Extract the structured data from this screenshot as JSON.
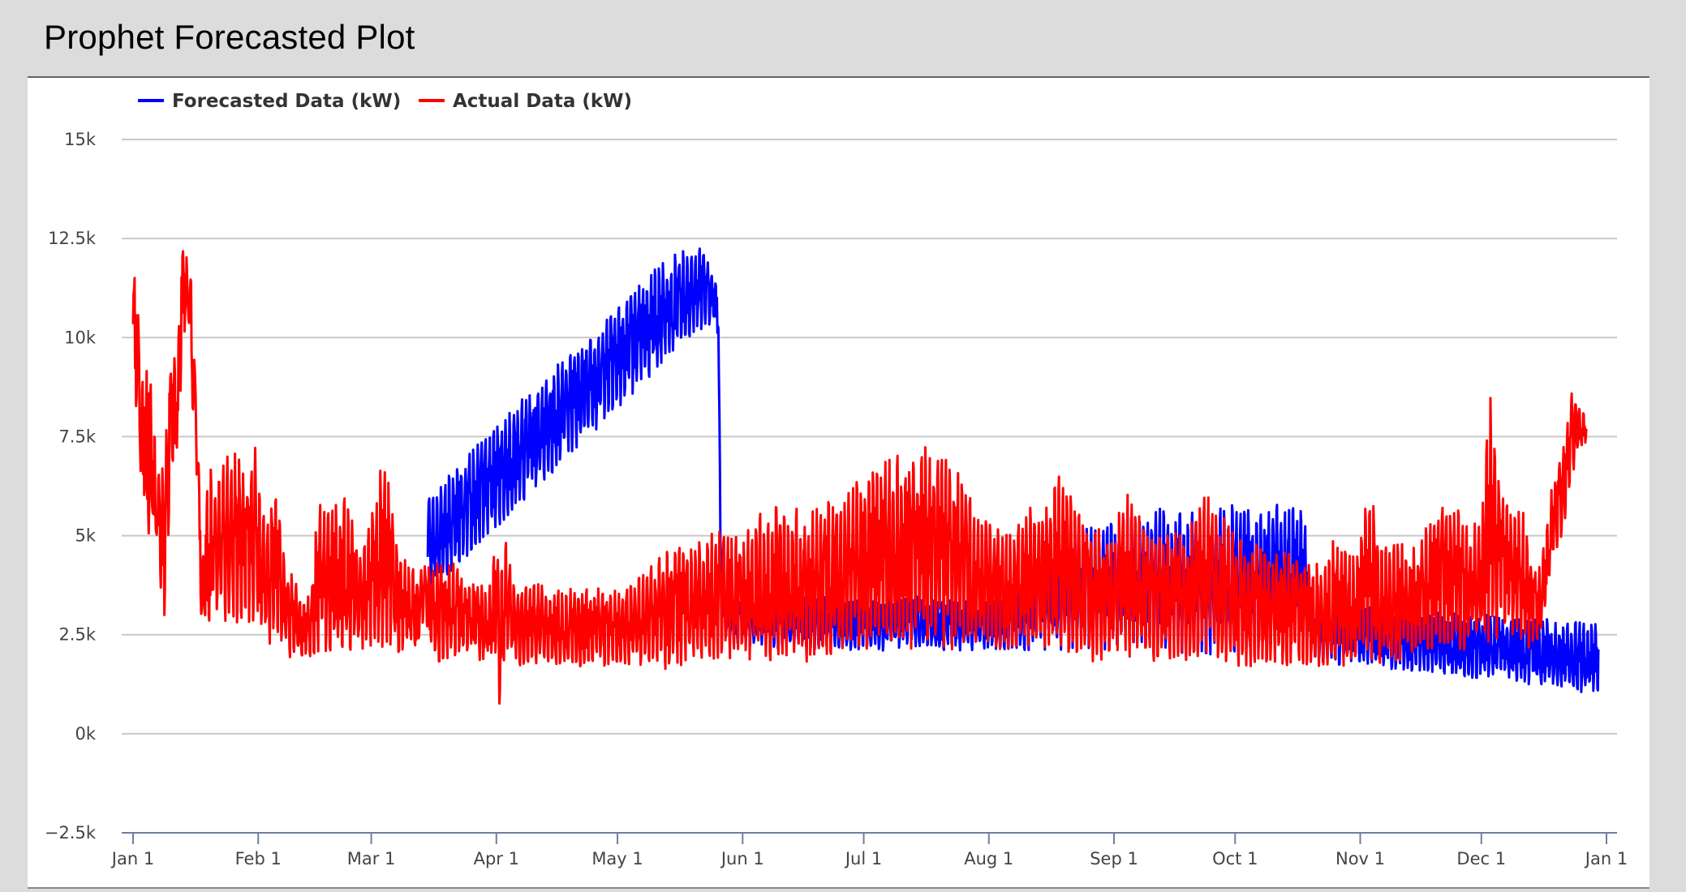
{
  "page": {
    "title": "Prophet Forecasted Plot"
  },
  "chart_data": {
    "type": "line",
    "title": "Prophet Forecasted Plot",
    "xlabel": "",
    "ylabel": "",
    "ylim": [
      -2500,
      15000
    ],
    "yticks": [
      -2500,
      0,
      2500,
      5000,
      7500,
      10000,
      12500,
      15000
    ],
    "ytick_labels": [
      "−2.5k",
      "0k",
      "2.5k",
      "5k",
      "7.5k",
      "10k",
      "12.5k",
      "15k"
    ],
    "x_unit": "day_of_year",
    "xlim": [
      0,
      365
    ],
    "xticks": [
      0,
      31,
      59,
      90,
      120,
      151,
      181,
      212,
      243,
      273,
      304,
      334,
      365
    ],
    "xtick_labels": [
      "Jan 1",
      "Feb 1",
      "Mar 1",
      "Apr 1",
      "May 1",
      "Jun 1",
      "Jul 1",
      "Aug 1",
      "Sep 1",
      "Oct 1",
      "Nov 1",
      "Dec 1",
      "Jan 1"
    ],
    "grid": true,
    "legend_position": "top-left",
    "series": [
      {
        "name": "Forecasted Data (kW)",
        "color": "#0000ff",
        "x": [
          73,
          76,
          80,
          84,
          88,
          92,
          96,
          100,
          104,
          108,
          112,
          116,
          120,
          124,
          128,
          132,
          136,
          140,
          144,
          145,
          145.5,
          146,
          150,
          156,
          162,
          168,
          174,
          180,
          186,
          192,
          198,
          204,
          210,
          216,
          222,
          228,
          234,
          240,
          246,
          250,
          254,
          258,
          262,
          266,
          270,
          274,
          278,
          282,
          286,
          290,
          292,
          294,
          300,
          306,
          312,
          318,
          324,
          330,
          336,
          342,
          348,
          354,
          360,
          362,
          363
        ],
        "min": [
          3600,
          3800,
          4200,
          4600,
          5000,
          5400,
          5800,
          6200,
          6600,
          7000,
          7400,
          7800,
          8200,
          8600,
          9000,
          9400,
          9800,
          10200,
          10200,
          10000,
          4000,
          2400,
          2200,
          2200,
          2100,
          2100,
          2100,
          2100,
          2100,
          2200,
          2100,
          2100,
          2100,
          2100,
          2100,
          2100,
          2100,
          2100,
          2100,
          2100,
          2000,
          2000,
          2000,
          2000,
          2000,
          2000,
          2000,
          2000,
          2000,
          2000,
          1900,
          1800,
          1700,
          1700,
          1600,
          1500,
          1500,
          1400,
          1400,
          1300,
          1200,
          1100,
          1000,
          1000,
          1100
        ],
        "max": [
          6100,
          6300,
          6800,
          7200,
          7600,
          8000,
          8400,
          8800,
          9200,
          9600,
          10000,
          10400,
          10800,
          11200,
          11600,
          12000,
          12200,
          12300,
          11800,
          11000,
          5500,
          3800,
          3500,
          3600,
          3400,
          3500,
          3400,
          3400,
          3500,
          3600,
          3400,
          3400,
          3300,
          3400,
          4500,
          5000,
          5100,
          5300,
          5500,
          5600,
          5700,
          5800,
          5600,
          5700,
          5800,
          5900,
          5800,
          5900,
          5800,
          5800,
          3700,
          3400,
          3300,
          3200,
          3200,
          3100,
          3100,
          3000,
          3000,
          2900,
          2900,
          2900,
          2800,
          2800,
          2700
        ]
      },
      {
        "name": "Actual Data (kW)",
        "color": "#ff0000",
        "x": [
          0,
          1,
          2,
          3,
          4,
          5,
          6,
          7,
          8,
          9,
          10,
          11,
          12,
          13,
          14,
          15,
          16,
          17,
          18,
          19,
          20,
          22,
          24,
          26,
          28,
          30,
          32,
          34,
          36,
          38,
          40,
          42,
          44,
          46,
          48,
          50,
          52,
          54,
          56,
          58,
          60,
          62,
          64,
          66,
          68,
          70,
          72,
          74,
          76,
          78,
          80,
          82,
          84,
          86,
          88,
          90,
          91,
          92,
          94,
          96,
          98,
          100,
          104,
          108,
          112,
          116,
          120,
          124,
          128,
          132,
          136,
          140,
          144,
          146,
          150,
          154,
          158,
          162,
          166,
          170,
          174,
          178,
          182,
          186,
          190,
          194,
          198,
          202,
          206,
          210,
          214,
          218,
          222,
          226,
          230,
          234,
          238,
          242,
          246,
          250,
          254,
          258,
          262,
          266,
          270,
          274,
          278,
          282,
          286,
          290,
          294,
          298,
          302,
          306,
          310,
          314,
          318,
          322,
          326,
          330,
          334,
          336,
          338,
          340,
          342,
          344,
          346,
          348,
          350,
          352,
          354,
          356,
          358,
          360,
          362,
          363
        ],
        "min": [
          9600,
          7600,
          6000,
          5500,
          4500,
          4800,
          4200,
          3500,
          2700,
          5200,
          6500,
          7000,
          9000,
          10500,
          10000,
          7500,
          6000,
          2600,
          2600,
          2500,
          3000,
          2700,
          3000,
          2500,
          2800,
          2700,
          2400,
          2100,
          2500,
          1900,
          1900,
          1900,
          1800,
          2000,
          2100,
          2100,
          2100,
          2100,
          2100,
          2000,
          2100,
          2100,
          2000,
          2000,
          2200,
          1800,
          2800,
          2000,
          1800,
          1900,
          1800,
          1800,
          1900,
          1800,
          1800,
          1800,
          400,
          1900,
          1800,
          1700,
          1700,
          1700,
          1700,
          1700,
          1700,
          1700,
          1800,
          1700,
          1700,
          1600,
          1700,
          1700,
          1700,
          1800,
          1800,
          1800,
          1800,
          1900,
          1800,
          1900,
          1900,
          2000,
          2000,
          2000,
          2100,
          2100,
          2100,
          2100,
          2100,
          2100,
          2100,
          2000,
          2000,
          2000,
          1900,
          1900,
          1800,
          1900,
          1800,
          1800,
          1800,
          1800,
          1800,
          1800,
          1700,
          1700,
          1700,
          1700,
          1700,
          1700,
          1700,
          1700,
          1700,
          1700,
          1700,
          1700,
          2000,
          2100,
          2100,
          2100,
          2200,
          2300,
          2400,
          2400,
          2500,
          2300,
          2100,
          2300,
          3000,
          4500,
          5000,
          6000,
          7000,
          7400
        ],
        "max": [
          11600,
          11400,
          9300,
          8800,
          10100,
          8300,
          7200,
          6700,
          7000,
          9800,
          9900,
          9000,
          12600,
          12100,
          11900,
          10700,
          7700,
          4300,
          5700,
          6900,
          6600,
          6900,
          7200,
          7000,
          6500,
          7500,
          5500,
          6000,
          6000,
          4200,
          4000,
          3600,
          3400,
          6100,
          5500,
          5900,
          6000,
          5800,
          4500,
          5000,
          6000,
          7400,
          5800,
          4800,
          4300,
          4100,
          4400,
          4200,
          4500,
          4300,
          4400,
          3900,
          4200,
          3800,
          3600,
          5000,
          4000,
          5500,
          3800,
          3700,
          3700,
          3800,
          3600,
          3700,
          3700,
          3700,
          3600,
          3800,
          4200,
          4600,
          4800,
          4900,
          5100,
          5100,
          5200,
          5500,
          5700,
          5900,
          5600,
          5800,
          6000,
          6500,
          6800,
          6900,
          7100,
          7200,
          7300,
          7000,
          6400,
          5600,
          5200,
          5000,
          5800,
          5700,
          6700,
          5800,
          5500,
          5000,
          6300,
          5300,
          5100,
          5200,
          5300,
          6300,
          5500,
          4900,
          4800,
          4500,
          4600,
          4400,
          4300,
          5000,
          4400,
          6200,
          4900,
          4800,
          4700,
          5600,
          5900,
          5500,
          5200,
          8800,
          6500,
          6200,
          5600,
          5800,
          4800,
          4000,
          5100,
          6700,
          7100,
          8700,
          8500,
          7900,
          9400,
          9500
        ]
      }
    ]
  }
}
